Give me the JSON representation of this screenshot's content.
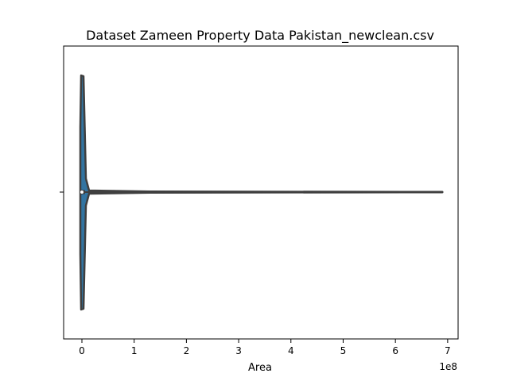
{
  "chart_data": {
    "type": "violin",
    "title": "Dataset Zameen Property Data Pakistan_newclean.csv",
    "xlabel": "Area",
    "x_offset_text": "1e8",
    "x_ticks": [
      0,
      1,
      2,
      3,
      4,
      5,
      6,
      7
    ],
    "x_tick_labels": [
      "0",
      "1",
      "2",
      "3",
      "4",
      "5",
      "6",
      "7"
    ],
    "xlim": [
      -0.35,
      7.2
    ],
    "distribution": {
      "min": 0,
      "max": 6.9,
      "median": 0.0,
      "unit_scale": "1e8"
    },
    "colors": {
      "violin_fill": "#3274a1",
      "violin_edge": "#3f3f3f",
      "median_marker": "#ffffff"
    }
  }
}
